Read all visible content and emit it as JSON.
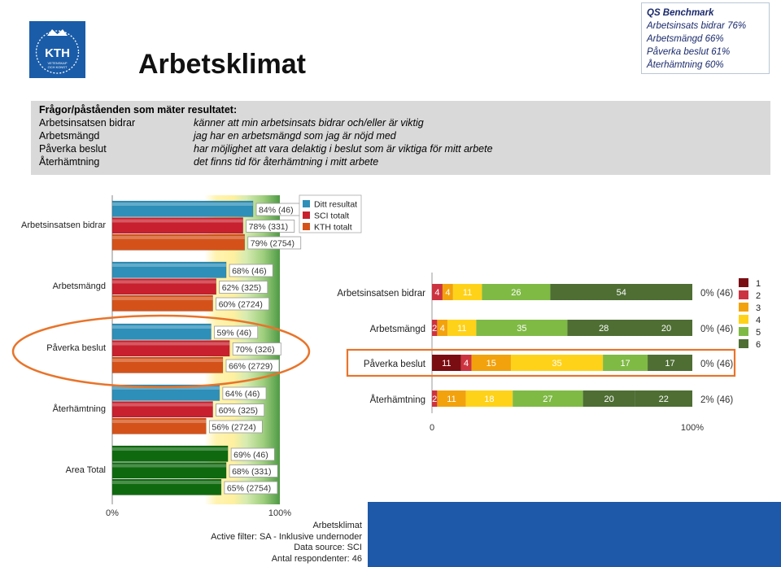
{
  "title": "Arbetsklimat",
  "logo_text": "KTH VETENSKAP OCH KONST",
  "benchmark": {
    "heading": "QS Benchmark",
    "lines": [
      "Arbetsinsats bidrar 76%",
      "Arbetsmängd 66%",
      "Påverka beslut 61%",
      "Återhämtning 60%"
    ]
  },
  "definitions": {
    "heading": "Frågor/påståenden som mäter resultatet:",
    "rows": [
      {
        "key": "Arbetsinsatsen bidrar",
        "text": "känner att min arbetsinsats bidrar och/eller är viktig"
      },
      {
        "key": "Arbetsmängd",
        "text": "jag har en arbetsmängd som jag är nöjd med"
      },
      {
        "key": "Påverka beslut",
        "text": "har möjlighet att vara delaktig i beslut som är viktiga för mitt arbete"
      },
      {
        "key": "Återhämtning",
        "text": "det finns tid för återhämtning i mitt arbete"
      }
    ]
  },
  "footer": {
    "lines": [
      "Arbetsklimat",
      "Active filter: SA - Inklusive undernoder",
      "Data source: SCI",
      "Antal respondenter: 46"
    ]
  },
  "colors": {
    "ditt": "#2e8fb8",
    "sci": "#c8202e",
    "kth": "#d4521a",
    "total": "#0f6a0f",
    "scale": [
      "#7a0d12",
      "#cc3340",
      "#f2a20d",
      "#ffd21a",
      "#7fba45",
      "#4e6e33"
    ]
  },
  "chart_data": [
    {
      "type": "bar",
      "orientation": "horizontal",
      "categories": [
        "Arbetsinsatsen bidrar",
        "Arbetsmängd",
        "Påverka beslut",
        "Återhämtning",
        "Area Total"
      ],
      "series": [
        {
          "name": "Ditt resultat",
          "values": [
            84,
            68,
            59,
            64,
            69
          ],
          "n": [
            46,
            46,
            46,
            46,
            46
          ]
        },
        {
          "name": "SCI totalt",
          "values": [
            78,
            62,
            70,
            60,
            68
          ],
          "n": [
            331,
            325,
            326,
            325,
            331
          ]
        },
        {
          "name": "KTH totalt",
          "values": [
            79,
            60,
            66,
            56,
            65
          ],
          "n": [
            2754,
            2724,
            2729,
            2724,
            2754
          ]
        }
      ],
      "xlim": [
        0,
        100
      ],
      "xticks": [
        "0%",
        "100%"
      ],
      "legend": "top-right",
      "highlighted": "Påverka beslut"
    },
    {
      "type": "bar",
      "orientation": "horizontal",
      "stacked": true,
      "categories": [
        "Arbetsinsatsen bidrar",
        "Arbetsmängd",
        "Påverka beslut",
        "Återhämtning"
      ],
      "series": [
        {
          "name": "1",
          "values": [
            0,
            0,
            11,
            0
          ]
        },
        {
          "name": "2",
          "values": [
            4,
            2,
            4,
            2
          ]
        },
        {
          "name": "3",
          "values": [
            4,
            4,
            15,
            11
          ]
        },
        {
          "name": "4",
          "values": [
            11,
            11,
            35,
            18
          ]
        },
        {
          "name": "5",
          "values": [
            26,
            35,
            17,
            27
          ]
        },
        {
          "name": "6",
          "values": [
            54,
            28,
            17,
            20
          ]
        }
      ],
      "extra_segment": [
        0,
        20,
        0,
        22
      ],
      "missing_labels": [
        "0% (46)",
        "0% (46)",
        "0% (46)",
        "2% (46)"
      ],
      "xlim": [
        0,
        100
      ],
      "xticks": [
        "0",
        "100%"
      ],
      "legend": "right",
      "highlighted": "Påverka beslut"
    }
  ]
}
